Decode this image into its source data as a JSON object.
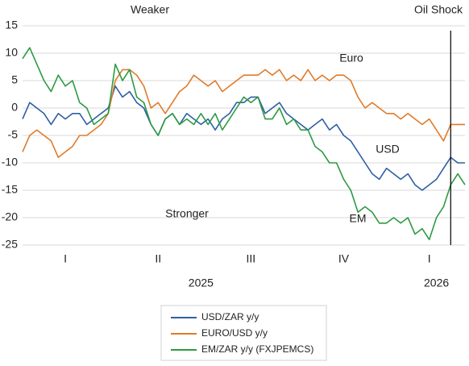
{
  "chart_data": {
    "type": "line",
    "categories": [
      null,
      null,
      null,
      null,
      null,
      null,
      "I",
      null,
      null,
      null,
      null,
      null,
      null,
      null,
      null,
      null,
      null,
      null,
      null,
      "II",
      null,
      null,
      null,
      null,
      null,
      null,
      null,
      null,
      null,
      null,
      null,
      null,
      "III",
      null,
      null,
      null,
      null,
      null,
      null,
      null,
      null,
      null,
      null,
      null,
      null,
      "IV",
      null,
      null,
      null,
      null,
      null,
      null,
      null,
      null,
      null,
      null,
      null,
      "I",
      null,
      null,
      null,
      null,
      null
    ],
    "year_categories": [
      null,
      null,
      null,
      null,
      null,
      null,
      null,
      null,
      null,
      null,
      null,
      null,
      null,
      null,
      null,
      null,
      null,
      null,
      null,
      null,
      null,
      null,
      null,
      null,
      null,
      "2025",
      null,
      null,
      null,
      null,
      null,
      null,
      null,
      null,
      null,
      null,
      null,
      null,
      null,
      null,
      null,
      null,
      null,
      null,
      null,
      null,
      null,
      null,
      null,
      null,
      null,
      null,
      null,
      null,
      null,
      null,
      null,
      null,
      "2026",
      null,
      null,
      null,
      null
    ],
    "series": [
      {
        "name": "USD/ZAR y/y",
        "color": "#2e5fa3",
        "values": [
          -2,
          1,
          0,
          -1,
          -3,
          -1,
          -2,
          -1,
          -1,
          -3,
          -2,
          -1,
          0,
          4,
          2,
          3,
          1,
          0,
          -3,
          -5,
          -2,
          -1,
          -3,
          -1,
          -2,
          -3,
          -2,
          -4,
          -2,
          -1,
          1,
          1,
          2,
          2,
          -1,
          0,
          1,
          -1,
          -2,
          -3,
          -4,
          -3,
          -2,
          -4,
          -3,
          -5,
          -6,
          -8,
          -10,
          -12,
          -13,
          -11,
          -12,
          -13,
          -12,
          -14,
          -15,
          -14,
          -13,
          -11,
          -9,
          -10,
          -10
        ]
      },
      {
        "name": "EURO/USD y/y",
        "color": "#e07b2a",
        "values": [
          -8,
          -5,
          -4,
          -5,
          -6,
          -9,
          -8,
          -7,
          -5,
          -5,
          -4,
          -3,
          -1,
          5,
          7,
          7,
          6,
          4,
          0,
          1,
          -1,
          1,
          3,
          4,
          6,
          5,
          4,
          5,
          3,
          4,
          5,
          6,
          6,
          6,
          7,
          6,
          7,
          5,
          6,
          5,
          7,
          5,
          6,
          5,
          6,
          6,
          5,
          2,
          0,
          1,
          0,
          -1,
          -1,
          -2,
          -1,
          -2,
          -3,
          -2,
          -4,
          -6,
          -3,
          -3,
          -3
        ]
      },
      {
        "name": "EM/ZAR y/y (FXJPEMCS)",
        "color": "#2e9a44",
        "values": [
          9,
          11,
          8,
          5,
          3,
          6,
          4,
          5,
          1,
          0,
          -3,
          -2,
          -1,
          8,
          5,
          7,
          2,
          1,
          -3,
          -5,
          -2,
          -1,
          -3,
          -2,
          -3,
          -1,
          -3,
          -1,
          -4,
          -2,
          0,
          2,
          1,
          2,
          -2,
          -2,
          0,
          -3,
          -2,
          -4,
          -4,
          -7,
          -8,
          -10,
          -10,
          -13,
          -15,
          -19,
          -18,
          -19,
          -21,
          -21,
          -20,
          -21,
          -20,
          -23,
          -22,
          -24,
          -20,
          -18,
          -14,
          -12,
          -14
        ]
      }
    ],
    "ylim": [
      -25,
      15
    ],
    "yticks": [
      -25,
      -20,
      -15,
      -10,
      -5,
      0,
      5,
      10,
      15
    ],
    "grid": true,
    "event_line": {
      "index": 60,
      "label": "Oil Shock"
    },
    "annotations": {
      "top": "Weaker",
      "bottom": "Stronger",
      "euro": "Euro",
      "usd": "USD",
      "em": "EM"
    }
  }
}
